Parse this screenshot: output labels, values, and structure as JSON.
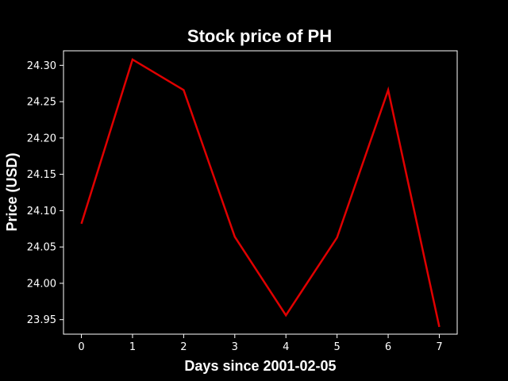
{
  "chart_data": {
    "type": "line",
    "title": "Stock price of PH",
    "xlabel": "Days since 2001-02-05",
    "ylabel": "Price (USD)",
    "x": [
      0,
      1,
      2,
      3,
      4,
      5,
      6,
      7
    ],
    "series": [
      {
        "values": [
          24.082,
          24.308,
          24.266,
          24.064,
          23.956,
          24.063,
          24.266,
          23.94
        ]
      }
    ],
    "xlim": [
      -0.35,
      7.35
    ],
    "ylim": [
      23.93,
      24.32
    ],
    "xticks": [
      "0",
      "1",
      "2",
      "3",
      "4",
      "5",
      "6",
      "7"
    ],
    "yticks": [
      "23.95",
      "24.00",
      "24.05",
      "24.10",
      "24.15",
      "24.20",
      "24.25",
      "24.30"
    ],
    "grid": false,
    "colors": {
      "background": "#000000",
      "axes": "#ffffff",
      "line": "#e00000",
      "text": "#ffffff"
    }
  }
}
